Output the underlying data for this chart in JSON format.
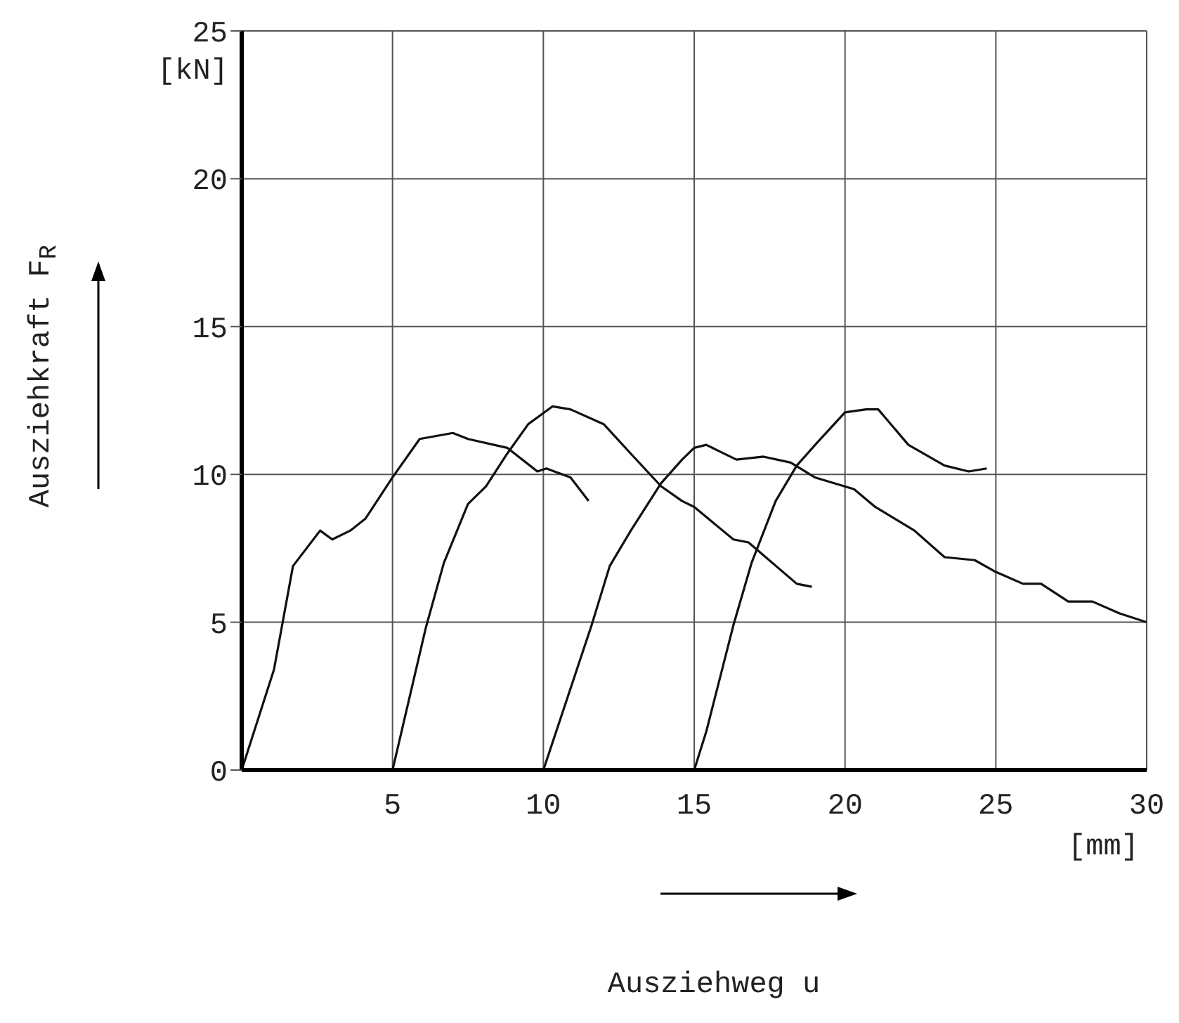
{
  "chart_data": {
    "type": "line",
    "xlabel": "Ausziehweg u",
    "ylabel": "Ausziehkraft F$_{R}$",
    "annotations": [
      "[kN]",
      "[mm]"
    ],
    "xlim": [
      0,
      30
    ],
    "xticks": [
      {
        "value": 0,
        "label": null
      },
      5,
      10,
      15,
      20,
      25,
      30
    ],
    "ylim": [
      0,
      25
    ],
    "yticks": [
      0,
      5,
      10,
      15,
      20,
      25
    ],
    "grid": true,
    "legend": false,
    "marker": "none",
    "line_style": "solid",
    "series": [
      {
        "color": "#111111",
        "x": [
          0,
          1.07,
          1.7,
          2.6,
          3.0,
          3.6,
          4.1,
          5.0,
          5.9,
          7.0,
          7.5,
          8.8,
          9.8,
          10.1,
          10.9,
          11.5
        ],
        "values": [
          0,
          3.4,
          6.9,
          8.1,
          7.8,
          8.1,
          8.5,
          9.9,
          11.2,
          11.4,
          11.2,
          10.9,
          10.1,
          10.2,
          9.9,
          9.1
        ]
      },
      {
        "color": "#111111",
        "x": [
          5,
          6.1,
          6.7,
          7.5,
          8.1,
          8.8,
          9.5,
          10.3,
          10.9,
          12.0,
          12.9,
          13.9,
          14.6,
          15.0,
          16.3,
          16.8,
          18.4,
          18.9
        ],
        "values": [
          0,
          4.8,
          7.0,
          9.0,
          9.6,
          10.7,
          11.7,
          12.3,
          12.2,
          11.7,
          10.7,
          9.6,
          9.1,
          8.9,
          7.8,
          7.7,
          6.3,
          6.2
        ]
      },
      {
        "color": "#111111",
        "x": [
          10,
          11.6,
          12.2,
          12.9,
          13.9,
          14.6,
          15.0,
          15.4,
          16.4,
          17.3,
          18.2,
          19.0,
          20.3,
          21.0,
          22.3,
          23.3,
          24.3,
          25.0,
          25.9,
          26.5,
          27.4,
          28.2,
          29.1,
          30
        ],
        "values": [
          0,
          4.9,
          6.9,
          8.1,
          9.7,
          10.5,
          10.9,
          11.0,
          10.5,
          10.6,
          10.4,
          9.9,
          9.5,
          8.9,
          8.1,
          7.2,
          7.1,
          6.7,
          6.3,
          6.3,
          5.7,
          5.7,
          5.3,
          5.0
        ]
      },
      {
        "color": "#111111",
        "x": [
          15,
          15.4,
          16.3,
          16.9,
          17.7,
          18.4,
          19.1,
          20.0,
          20.7,
          21.1,
          22.1,
          23.3,
          24.1,
          24.7
        ],
        "values": [
          0,
          1.3,
          4.9,
          7.0,
          9.1,
          10.3,
          11.1,
          12.1,
          12.2,
          12.2,
          11.0,
          10.3,
          10.1,
          10.2
        ]
      }
    ]
  }
}
